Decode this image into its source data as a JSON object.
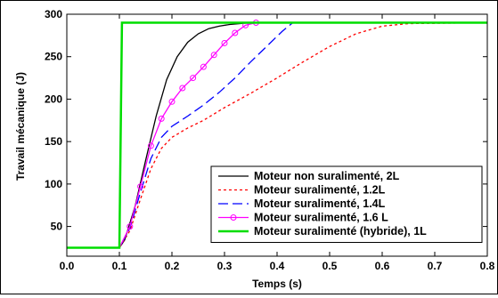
{
  "chart_data": {
    "type": "line",
    "title": "",
    "xlabel": "Temps (s)",
    "ylabel": "Travail mécanique (J)",
    "xlim": [
      0,
      0.8
    ],
    "ylim": [
      15,
      300
    ],
    "xticks": [
      "0.0",
      "0.1",
      "0.2",
      "0.3",
      "0.4",
      "0.5",
      "0.6",
      "0.7",
      "0.8"
    ],
    "yticks": [
      "50",
      "100",
      "150",
      "200",
      "250",
      "300"
    ],
    "xtick_values": [
      0,
      0.1,
      0.2,
      0.3,
      0.4,
      0.5,
      0.6,
      0.7,
      0.8
    ],
    "ytick_values": [
      50,
      100,
      150,
      200,
      250,
      300
    ],
    "grid": false,
    "legend_position": "bottom-right",
    "series": [
      {
        "name": "Moteur non suralimenté, 2L",
        "color": "#000000",
        "dash": "solid",
        "marker": "none",
        "x": [
          0,
          0.1,
          0.11,
          0.13,
          0.15,
          0.17,
          0.19,
          0.21,
          0.23,
          0.25,
          0.27,
          0.29,
          0.31,
          0.33,
          0.35,
          0.8
        ],
        "y": [
          25,
          25,
          34,
          74,
          128,
          180,
          223,
          250,
          267,
          277,
          283,
          286,
          288,
          289,
          290,
          290
        ]
      },
      {
        "name": "Moteur suralimenté, 1.2L",
        "color": "#ff0000",
        "dash": "dotted",
        "marker": "none",
        "x": [
          0,
          0.1,
          0.12,
          0.14,
          0.16,
          0.18,
          0.2,
          0.23,
          0.26,
          0.3,
          0.35,
          0.4,
          0.45,
          0.5,
          0.55,
          0.6,
          0.65,
          0.8
        ],
        "y": [
          25,
          25,
          45,
          82,
          118,
          142,
          155,
          166,
          175,
          190,
          207,
          225,
          244,
          262,
          277,
          286,
          289,
          290
        ]
      },
      {
        "name": "Moteur suralimenté, 1.4L",
        "color": "#0000ff",
        "dash": "dashed",
        "marker": "none",
        "x": [
          0,
          0.1,
          0.12,
          0.14,
          0.16,
          0.18,
          0.2,
          0.23,
          0.26,
          0.29,
          0.32,
          0.35,
          0.38,
          0.41,
          0.43,
          0.8
        ],
        "y": [
          25,
          25,
          48,
          90,
          130,
          155,
          168,
          180,
          193,
          208,
          225,
          244,
          262,
          280,
          290,
          290
        ]
      },
      {
        "name": "Moteur suralimenté, 1.6 L",
        "color": "#ff00ff",
        "dash": "solid",
        "marker": "circle",
        "x": [
          0,
          0.1,
          0.12,
          0.14,
          0.16,
          0.18,
          0.2,
          0.22,
          0.24,
          0.26,
          0.28,
          0.3,
          0.32,
          0.34,
          0.36,
          0.8
        ],
        "y": [
          25,
          25,
          50,
          97,
          145,
          177,
          197,
          213,
          225,
          238,
          252,
          266,
          278,
          287,
          290,
          290
        ]
      },
      {
        "name": "Moteur suralimenté (hybride), 1L",
        "color": "#00dd00",
        "dash": "solid",
        "marker": "none",
        "x": [
          0,
          0.1,
          0.105,
          0.8
        ],
        "y": [
          25,
          25,
          290,
          290
        ]
      }
    ]
  }
}
